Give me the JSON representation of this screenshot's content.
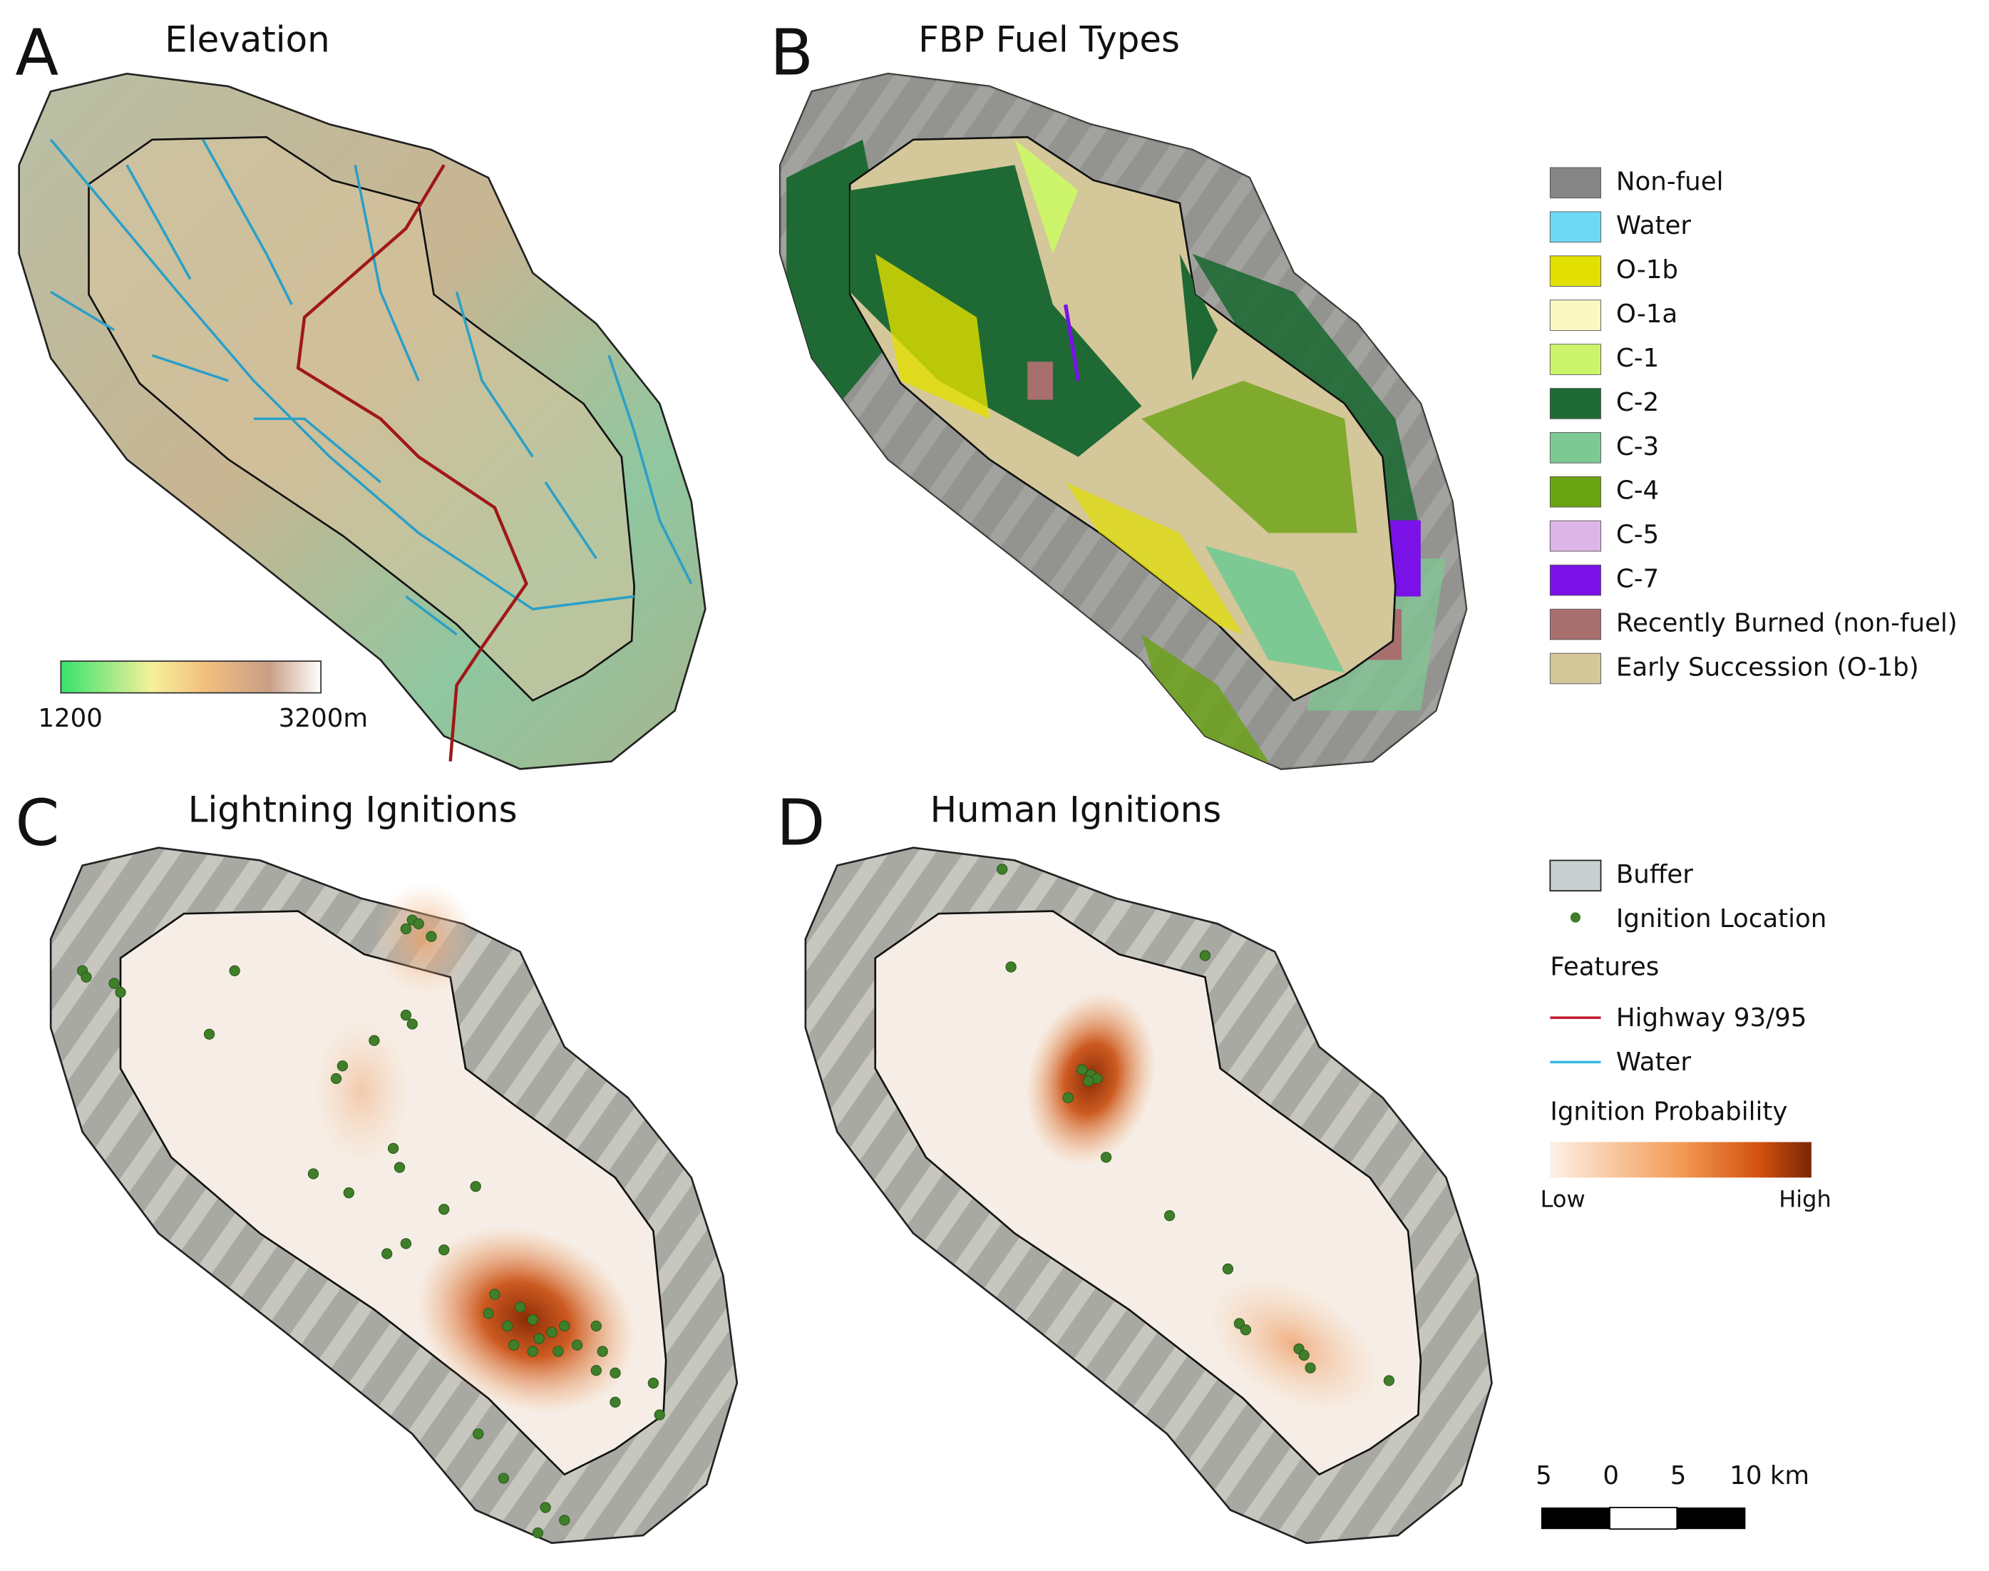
{
  "panels": [
    {
      "letter": "A",
      "title": "Elevation"
    },
    {
      "letter": "B",
      "title": "FBP Fuel Types"
    },
    {
      "letter": "C",
      "title": "Lightning Ignitions"
    },
    {
      "letter": "D",
      "title": "Human Ignitions"
    }
  ],
  "elevation_legend": {
    "min_label": "1200",
    "max_label": "3200m"
  },
  "fuel_legend": [
    {
      "label": "Non-fuel",
      "color": "#858585"
    },
    {
      "label": "Water",
      "color": "#6fd8f5"
    },
    {
      "label": "O-1b",
      "color": "#e2e000"
    },
    {
      "label": "O-1a",
      "color": "#fbf8c2"
    },
    {
      "label": "C-1",
      "color": "#cdf56b"
    },
    {
      "label": "C-2",
      "color": "#1f6a34"
    },
    {
      "label": "C-3",
      "color": "#7dc993"
    },
    {
      "label": "C-4",
      "color": "#6aa312"
    },
    {
      "label": "C-5",
      "color": "#dcb6e6"
    },
    {
      "label": "C-7",
      "color": "#7a12e8"
    },
    {
      "label": "Recently Burned (non-fuel)",
      "color": "#a86f6f"
    },
    {
      "label": "Early Succession (O-1b)",
      "color": "#d4c79a"
    }
  ],
  "ignition_legend": {
    "buffer": "Buffer",
    "ignition": "Ignition Location",
    "features_heading": "Features",
    "highway": "Highway 93/95",
    "water": "Water",
    "probability_heading": "Ignition Probability",
    "low": "Low",
    "high": "High"
  },
  "scale_bar": {
    "labels": [
      "5",
      "0",
      "5",
      "10 km"
    ]
  }
}
